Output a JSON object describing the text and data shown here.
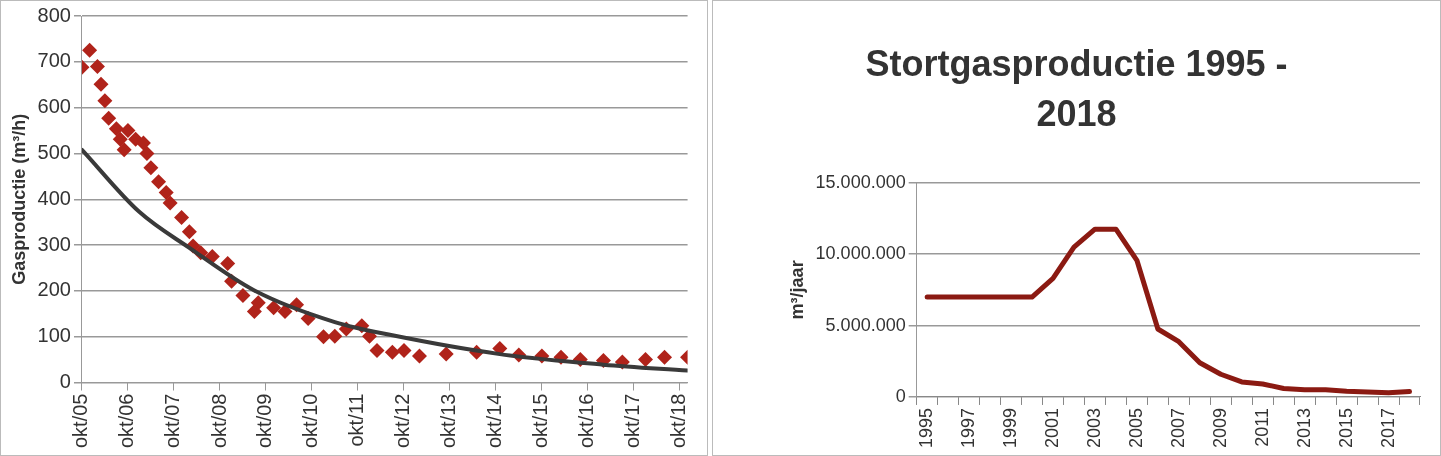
{
  "chart_data": [
    {
      "type": "scatter",
      "ylabel": "Gasproductie (m³/h)",
      "xlim": [
        "2005-10",
        "2018-12"
      ],
      "xticks": [
        {
          "value": "2005-10",
          "label": "okt/05"
        },
        {
          "value": "2006-10",
          "label": "okt/06"
        },
        {
          "value": "2007-10",
          "label": "okt/07"
        },
        {
          "value": "2008-10",
          "label": "okt/08"
        },
        {
          "value": "2009-10",
          "label": "okt/09"
        },
        {
          "value": "2010-10",
          "label": "okt/10"
        },
        {
          "value": "2011-10",
          "label": "okt/11"
        },
        {
          "value": "2012-10",
          "label": "okt/12"
        },
        {
          "value": "2013-10",
          "label": "okt/13"
        },
        {
          "value": "2014-10",
          "label": "okt/14"
        },
        {
          "value": "2015-10",
          "label": "okt/15"
        },
        {
          "value": "2016-10",
          "label": "okt/16"
        },
        {
          "value": "2017-10",
          "label": "okt/17"
        },
        {
          "value": "2018-10",
          "label": "okt/18"
        }
      ],
      "ylim": [
        0,
        800
      ],
      "yticks": [
        0,
        100,
        200,
        300,
        400,
        500,
        600,
        700,
        800
      ],
      "grid": "y",
      "series": [
        {
          "type": "scatter",
          "marker": "diamond",
          "color": "#b0231a",
          "x": [
            "2005-10",
            "2005-12",
            "2006-02",
            "2006-03",
            "2006-04",
            "2006-05",
            "2006-07",
            "2006-08",
            "2006-09",
            "2006-10",
            "2006-12",
            "2007-02",
            "2007-03",
            "2007-04",
            "2007-06",
            "2007-08",
            "2007-09",
            "2007-12",
            "2008-02",
            "2008-03",
            "2008-05",
            "2008-08",
            "2008-12",
            "2009-01",
            "2009-04",
            "2009-07",
            "2009-08",
            "2009-12",
            "2010-03",
            "2010-06",
            "2010-09",
            "2011-01",
            "2011-04",
            "2011-07",
            "2011-11",
            "2012-01",
            "2012-03",
            "2012-07",
            "2012-10",
            "2013-02",
            "2013-09",
            "2014-05",
            "2014-11",
            "2015-04",
            "2015-10",
            "2016-03",
            "2016-08",
            "2017-02",
            "2017-07",
            "2018-01",
            "2018-06",
            "2018-12"
          ],
          "values": [
            688,
            725,
            690,
            651,
            615,
            577,
            554,
            531,
            508,
            550,
            531,
            523,
            500,
            469,
            438,
            415,
            392,
            360,
            329,
            298,
            283,
            275,
            260,
            221,
            190,
            155,
            174,
            163,
            155,
            170,
            140,
            100,
            101,
            117,
            124,
            101,
            70,
            66,
            70,
            58,
            62,
            66,
            74,
            60,
            58,
            55,
            50,
            48,
            45,
            50,
            55,
            55
          ]
        },
        {
          "type": "line",
          "marker": "none",
          "color": "#3a3a3a",
          "x": [
            "2005-10",
            "2007-01",
            "2008-02",
            "2009-07",
            "2011-04",
            "2012-07",
            "2014-11",
            "2017-02",
            "2018-12"
          ],
          "values": [
            508,
            372,
            294,
            201,
            132,
            103,
            62,
            39,
            26
          ]
        }
      ]
    },
    {
      "type": "line",
      "title": "Stortgasproductie 1995 - 2018",
      "ylabel": "m³/jaar",
      "marker": "none",
      "grid": "y",
      "categories": [
        "1995",
        null,
        "1997",
        null,
        "1999",
        null,
        "2001",
        null,
        "2003",
        null,
        "2005",
        null,
        "2007",
        null,
        "2009",
        null,
        "2011",
        null,
        "2013",
        null,
        "2015",
        null,
        "2017",
        null
      ],
      "ylim": [
        0,
        15000000
      ],
      "yticks": [
        0,
        {
          "value": 5000000,
          "label": "5.000.000"
        },
        {
          "value": 10000000,
          "label": "10.000.000"
        },
        {
          "value": 15000000,
          "label": "15.000.000"
        }
      ],
      "series": [
        {
          "color": "#8b1a12",
          "values": [
            7000000,
            7000000,
            7000000,
            7000000,
            7000000,
            7000000,
            8300000,
            10500000,
            11750000,
            11750000,
            9570000,
            4760000,
            3870000,
            2400000,
            1590000,
            1050000,
            910000,
            590000,
            510000,
            500000,
            400000,
            350000,
            300000,
            380000
          ]
        }
      ]
    }
  ]
}
